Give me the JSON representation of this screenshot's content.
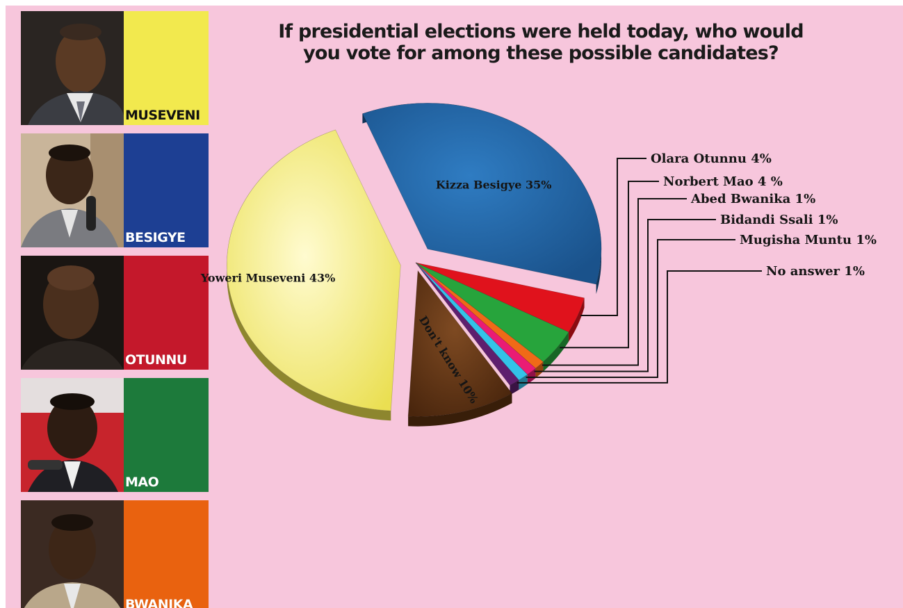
{
  "title": "If presidential elections were held today, who would you vote for among these possible candidates?",
  "candidates": [
    {
      "name": "MUSEVENI",
      "color": "#f2e94e",
      "portrait": "portrait-museveni"
    },
    {
      "name": "BESIGYE",
      "color": "#1d3f93",
      "portrait": "portrait-besigye"
    },
    {
      "name": "OTUNNU",
      "color": "#c4182b",
      "portrait": "portrait-otunnu"
    },
    {
      "name": "MAO",
      "color": "#1d7a3b",
      "portrait": "portrait-mao"
    },
    {
      "name": "BWANIKA",
      "color": "#e9620f",
      "portrait": "portrait-bwanika"
    }
  ],
  "chart_data": {
    "type": "pie",
    "title": "If presidential elections were held today, who would you vote for among these possible candidates?",
    "categories": [
      "Yoweri Museveni",
      "Kizza Besigye",
      "Olara Otunnu",
      "Norbert Mao",
      "Abed Bwanika",
      "Bidandi Ssali",
      "Mugisha Muntu",
      "No answer",
      "Don't know"
    ],
    "values": [
      43,
      35,
      4,
      4,
      1,
      1,
      1,
      1,
      10
    ],
    "labels": [
      "Yoweri Museveni 43%",
      "Kizza Besigye 35%",
      "Olara Otunnu 4%",
      "Norbert Mao 4 %",
      "Abed Bwanika 1%",
      "Bidandi Ssali 1%",
      "Mugisha Muntu 1%",
      "No answer 1%",
      "Don't know 10%"
    ],
    "colors": [
      "#f4ec6c",
      "#1f63a6",
      "#e0121c",
      "#27a43c",
      "#f06a17",
      "#ea1c74",
      "#33c3e8",
      "#5e1f6e",
      "#6e3a16"
    ],
    "legend": "none"
  }
}
